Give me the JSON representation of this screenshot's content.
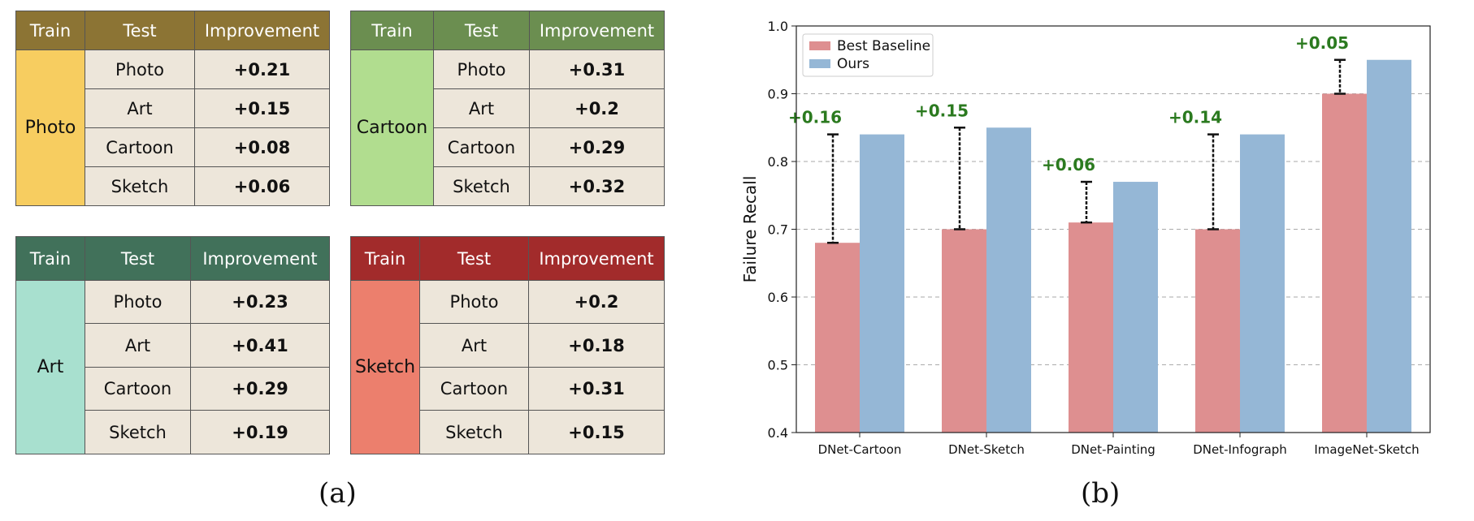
{
  "tables": [
    {
      "headers": {
        "train": "Train",
        "test": "Test",
        "improvement": "Improvement"
      },
      "header_color": "#8c7434",
      "train_domain": "Photo",
      "train_color": "#f7cd60",
      "rows": [
        {
          "test": "Photo",
          "improvement": "+0.21"
        },
        {
          "test": "Art",
          "improvement": "+0.15"
        },
        {
          "test": "Cartoon",
          "improvement": "+0.08"
        },
        {
          "test": "Sketch",
          "improvement": "+0.06"
        }
      ]
    },
    {
      "headers": {
        "train": "Train",
        "test": "Test",
        "improvement": "Improvement"
      },
      "header_color": "#6b8e50",
      "train_domain": "Cartoon",
      "train_color": "#b1dd8f",
      "rows": [
        {
          "test": "Photo",
          "improvement": "+0.31"
        },
        {
          "test": "Art",
          "improvement": "+0.2"
        },
        {
          "test": "Cartoon",
          "improvement": "+0.29"
        },
        {
          "test": "Sketch",
          "improvement": "+0.32"
        }
      ]
    },
    {
      "headers": {
        "train": "Train",
        "test": "Test",
        "improvement": "Improvement"
      },
      "header_color": "#41715a",
      "train_domain": "Art",
      "train_color": "#a8e0cf",
      "rows": [
        {
          "test": "Photo",
          "improvement": "+0.23"
        },
        {
          "test": "Art",
          "improvement": "+0.41"
        },
        {
          "test": "Cartoon",
          "improvement": "+0.29"
        },
        {
          "test": "Sketch",
          "improvement": "+0.19"
        }
      ]
    },
    {
      "headers": {
        "train": "Train",
        "test": "Test",
        "improvement": "Improvement"
      },
      "header_color": "#a22b2b",
      "train_domain": "Sketch",
      "train_color": "#ec7f6d",
      "rows": [
        {
          "test": "Photo",
          "improvement": "+0.2"
        },
        {
          "test": "Art",
          "improvement": "+0.18"
        },
        {
          "test": "Cartoon",
          "improvement": "+0.31"
        },
        {
          "test": "Sketch",
          "improvement": "+0.15"
        }
      ]
    }
  ],
  "captions": {
    "a": "(a)",
    "b": "(b)"
  },
  "chart_data": {
    "type": "bar",
    "categories": [
      "DNet-Cartoon",
      "DNet-Sketch",
      "DNet-Painting",
      "DNet-Infograph",
      "ImageNet-Sketch"
    ],
    "series": [
      {
        "name": "Best Baseline",
        "values": [
          0.68,
          0.7,
          0.71,
          0.7,
          0.9
        ],
        "color": "#de8f90"
      },
      {
        "name": "Ours",
        "values": [
          0.84,
          0.85,
          0.77,
          0.84,
          0.95
        ],
        "color": "#95b7d6"
      }
    ],
    "annotations": [
      "+0.16",
      "+0.15",
      "+0.06",
      "+0.14",
      "+0.05"
    ],
    "annotation_color": "#2b7a1f",
    "xlabel": "",
    "ylabel": "Failure Recall",
    "ylim": [
      0.4,
      1.0
    ],
    "yticks": [
      "0.4",
      "0.5",
      "0.6",
      "0.7",
      "0.8",
      "0.9",
      "1.0"
    ],
    "grid": true,
    "legend_position": "top-left"
  }
}
